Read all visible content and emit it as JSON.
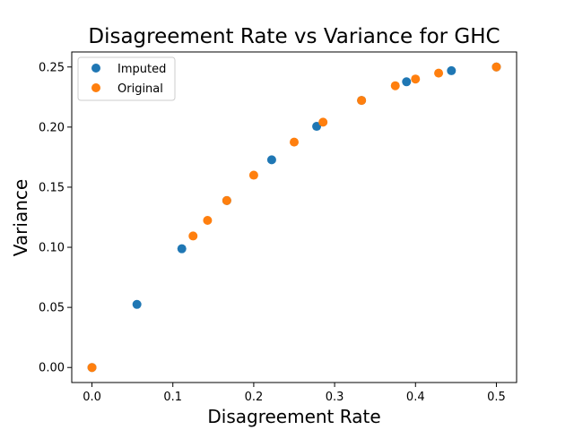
{
  "chart_data": {
    "type": "scatter",
    "title": "Disagreement Rate vs Variance for GHC",
    "xlabel": "Disagreement Rate",
    "ylabel": "Variance",
    "xlim": [
      -0.025,
      0.525
    ],
    "ylim": [
      -0.0125,
      0.2625
    ],
    "xticks": [
      0.0,
      0.1,
      0.2,
      0.3,
      0.4,
      0.5
    ],
    "xtick_labels": [
      "0.0",
      "0.1",
      "0.2",
      "0.3",
      "0.4",
      "0.5"
    ],
    "yticks": [
      0.0,
      0.05,
      0.1,
      0.15,
      0.2,
      0.25
    ],
    "ytick_labels": [
      "0.00",
      "0.05",
      "0.10",
      "0.15",
      "0.20",
      "0.25"
    ],
    "grid": false,
    "legend_position": "top-left",
    "series": [
      {
        "name": "Imputed",
        "color": "#1f77b4",
        "points": [
          {
            "x": 0.0,
            "y": 0.0
          },
          {
            "x": 0.0556,
            "y": 0.0525
          },
          {
            "x": 0.1111,
            "y": 0.0988
          },
          {
            "x": 0.1667,
            "y": 0.1389
          },
          {
            "x": 0.2222,
            "y": 0.1728
          },
          {
            "x": 0.2778,
            "y": 0.2006
          },
          {
            "x": 0.3333,
            "y": 0.2222
          },
          {
            "x": 0.3889,
            "y": 0.2377
          },
          {
            "x": 0.4444,
            "y": 0.2469
          },
          {
            "x": 0.5,
            "y": 0.25
          }
        ]
      },
      {
        "name": "Original",
        "color": "#ff7f0e",
        "points": [
          {
            "x": 0.0,
            "y": 0.0
          },
          {
            "x": 0.125,
            "y": 0.1094
          },
          {
            "x": 0.1429,
            "y": 0.1224
          },
          {
            "x": 0.1667,
            "y": 0.1389
          },
          {
            "x": 0.2,
            "y": 0.16
          },
          {
            "x": 0.25,
            "y": 0.1875
          },
          {
            "x": 0.2857,
            "y": 0.2041
          },
          {
            "x": 0.3333,
            "y": 0.2222
          },
          {
            "x": 0.375,
            "y": 0.2344
          },
          {
            "x": 0.4,
            "y": 0.24
          },
          {
            "x": 0.4286,
            "y": 0.2449
          },
          {
            "x": 0.5,
            "y": 0.25
          }
        ]
      }
    ]
  }
}
